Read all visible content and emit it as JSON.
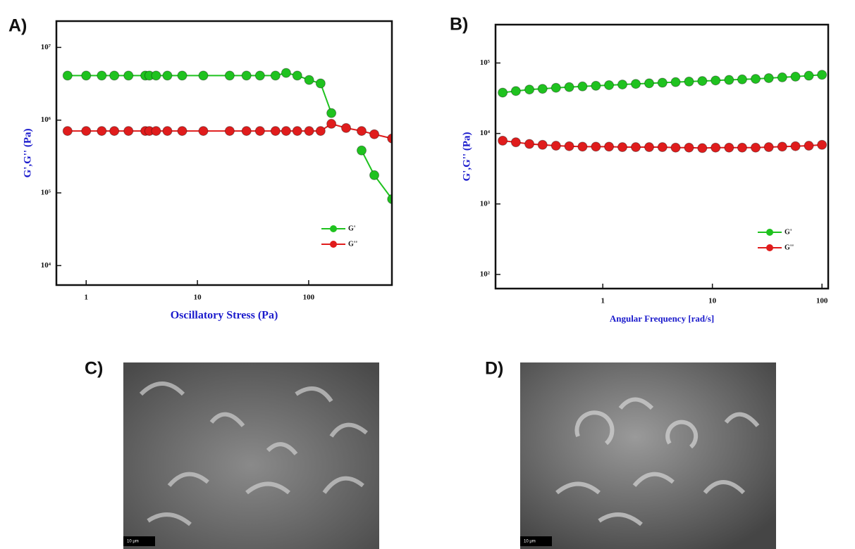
{
  "chart_data": [
    {
      "type": "line",
      "panel": "A)",
      "xlabel": "Oscillatory Stress (Pa)",
      "ylabel": "G',G'' (Pa)",
      "xscale": "log",
      "yscale": "log",
      "legend": "lower right",
      "xlim": [
        0.54,
        560
      ],
      "xticks": [
        1,
        10,
        100
      ],
      "ylim": [
        5400,
        23000000
      ],
      "yticks": [
        {
          "value": 10000,
          "label": "10⁴"
        },
        {
          "value": 100000,
          "label": "10⁵"
        },
        {
          "value": 1000000,
          "label": "10⁶"
        },
        {
          "value": 10000000,
          "label": "10⁷"
        }
      ],
      "x": [
        0.68,
        1,
        1.38,
        1.79,
        2.4,
        3.4,
        3.7,
        4.25,
        5.37,
        7.3,
        11.3,
        19.5,
        27.6,
        36.5,
        50.3,
        62.7,
        79,
        101,
        128,
        160,
        217,
        299,
        389,
        562
      ],
      "series": [
        {
          "name": "G'",
          "color": "#1fc21f",
          "values": [
            4100000,
            4100000,
            4100000,
            4100000,
            4100000,
            4100000,
            4100000,
            4100000,
            4100000,
            4100000,
            4100000,
            4100000,
            4100000,
            4100000,
            4100000,
            4460000,
            4100000,
            3570000,
            3200000,
            1250000,
            null,
            383000,
            175000,
            82000
          ]
        },
        {
          "name": "G''",
          "color": "#e01c1c",
          "values": [
            710000,
            710000,
            710000,
            710000,
            710000,
            710000,
            710000,
            710000,
            710000,
            710000,
            710000,
            710000,
            710000,
            710000,
            710000,
            710000,
            710000,
            710000,
            710000,
            890000,
            780000,
            710000,
            640000,
            560000
          ]
        }
      ]
    },
    {
      "type": "line",
      "panel": "B)",
      "xlabel": "Angular Frequency [rad/s]",
      "ylabel": "G',G'' (Pa)",
      "xscale": "log",
      "yscale": "log",
      "legend": "lower right",
      "xlim": [
        0.105,
        114
      ],
      "xticks": [
        1,
        10,
        100
      ],
      "ylim": [
        63,
        350000
      ],
      "yticks": [
        {
          "value": 100,
          "label": "10²"
        },
        {
          "value": 1000,
          "label": "10³"
        },
        {
          "value": 10000,
          "label": "10⁴"
        },
        {
          "value": 100000,
          "label": "10⁵"
        }
      ],
      "x": [
        0.122,
        0.161,
        0.214,
        0.282,
        0.374,
        0.494,
        0.653,
        0.865,
        1.14,
        1.51,
        2.0,
        2.65,
        3.5,
        4.62,
        6.12,
        8.09,
        10.7,
        14.2,
        18.7,
        24.8,
        32.7,
        43.4,
        57.3,
        75.9,
        100
      ],
      "series": [
        {
          "name": "G'",
          "color": "#1fc21f",
          "values": [
            38000,
            40000,
            42000,
            43000,
            44500,
            45500,
            46500,
            47500,
            48500,
            49500,
            50500,
            51500,
            52500,
            53500,
            54500,
            55500,
            56500,
            57500,
            58500,
            59500,
            61000,
            62500,
            64000,
            66000,
            68000
          ]
        },
        {
          "name": "G''",
          "color": "#e01c1c",
          "values": [
            7900,
            7500,
            7100,
            6900,
            6700,
            6600,
            6500,
            6500,
            6500,
            6400,
            6400,
            6400,
            6400,
            6300,
            6300,
            6200,
            6300,
            6300,
            6300,
            6300,
            6400,
            6500,
            6600,
            6700,
            6900
          ]
        }
      ]
    }
  ],
  "images": [
    {
      "panel": "C)",
      "scale_bar": "10 μm"
    },
    {
      "panel": "D)",
      "scale_bar": "10 μm"
    }
  ]
}
